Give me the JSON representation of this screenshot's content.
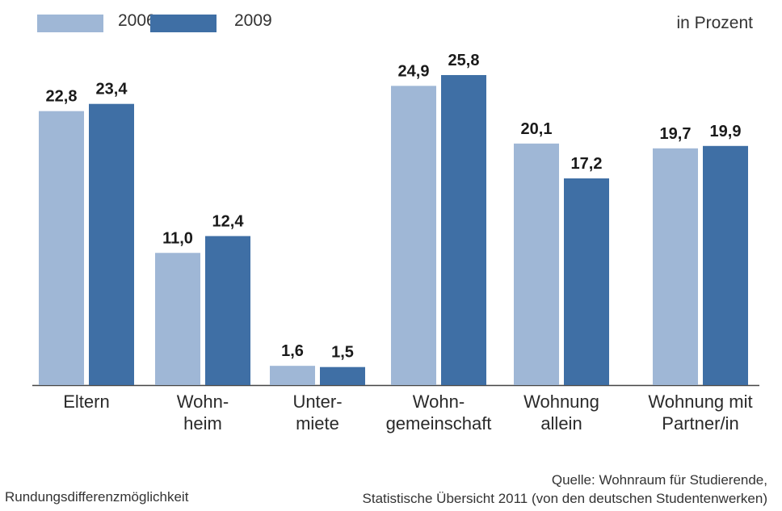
{
  "legend": {
    "series1": "2006",
    "series2": "2009"
  },
  "unit": "in Prozent",
  "footer": {
    "note": "Rundungsdifferenzmöglichkeit",
    "source_line1": "Quelle: Wohnraum für Studierende,",
    "source_line2": "Statistische Übersicht 2011 (von den deutschen Studentenwerken)"
  },
  "colors": {
    "series1": "#9fb7d6",
    "series2": "#3f6fa5",
    "axis": "#444444"
  },
  "chart_data": {
    "type": "bar",
    "categories": [
      [
        "Eltern"
      ],
      [
        "Wohn-",
        "heim"
      ],
      [
        "Unter-",
        "miete"
      ],
      [
        "Wohn-",
        "gemeinschaft"
      ],
      [
        "Wohnung",
        "allein"
      ],
      [
        "Wohnung mit",
        "Partner/in"
      ]
    ],
    "series": [
      {
        "name": "2006",
        "values": [
          22.8,
          11.0,
          1.6,
          24.9,
          20.1,
          19.7
        ],
        "labels": [
          "22,8",
          "11,0",
          "1,6",
          "24,9",
          "20,1",
          "19,7"
        ]
      },
      {
        "name": "2009",
        "values": [
          23.4,
          12.4,
          1.5,
          25.8,
          17.2,
          19.9
        ],
        "labels": [
          "23,4",
          "12,4",
          "1,5",
          "25,8",
          "17,2",
          "19,9"
        ]
      }
    ],
    "ylim": [
      0,
      26
    ],
    "grid": false,
    "legend_position": "top-left"
  }
}
